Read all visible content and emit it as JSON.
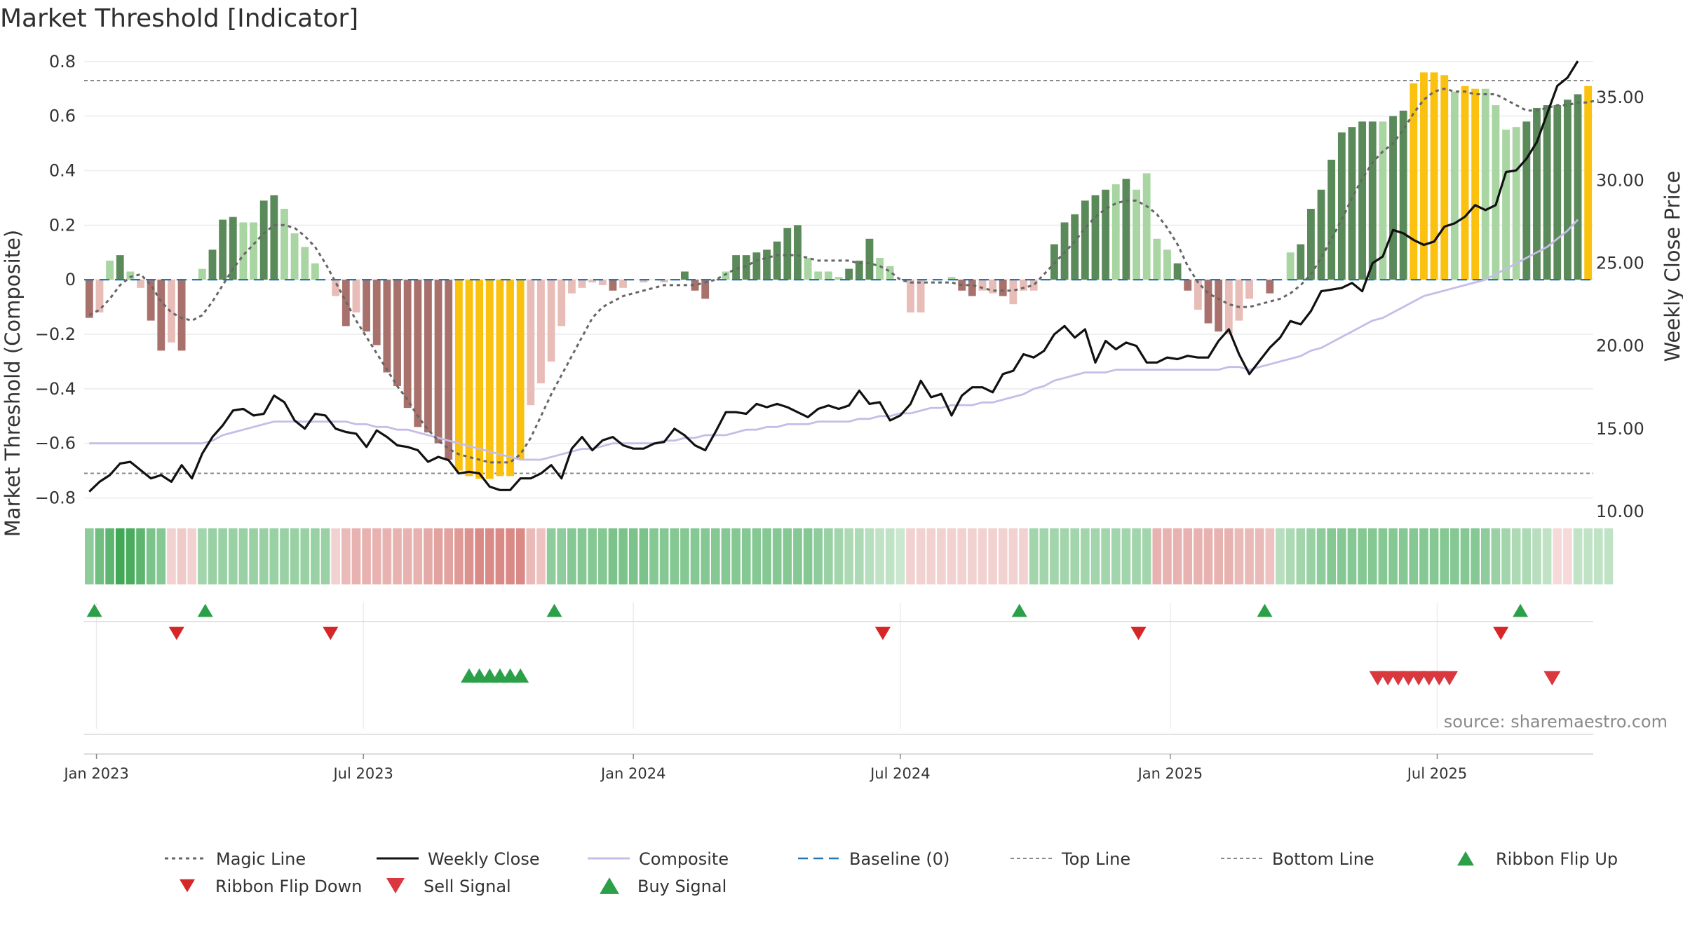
{
  "title": "Market Threshold [Indicator]",
  "source": "source: sharemaestro.com",
  "colors": {
    "strong_up": "#5b8a5a",
    "weak_up": "#a8d5a2",
    "strong_down": "#a8716c",
    "weak_down": "#e8bdb8",
    "extreme": "#fbc10f",
    "price": "#111111",
    "composite": "#c5bde8",
    "magic": "#666666",
    "baseline": "#1f77b4",
    "threshold": "#888888",
    "buy": "#2ca048",
    "sell": "#d9383f",
    "flip_down": "#d62728"
  },
  "chart_data": {
    "type": "bar",
    "title": "Market Threshold [Indicator]",
    "ylabel_left": "Market Threshold (Composite)",
    "ylabel_right": "Weekly Close Price",
    "ylim_left": [
      -0.85,
      0.82
    ],
    "ylim_right": [
      10,
      37.5
    ],
    "yticks_left": [
      0.8,
      0.6,
      0.4,
      0.2,
      0,
      -0.2,
      -0.4,
      -0.6,
      -0.8
    ],
    "yticks_left_labels": [
      "0.8",
      "0.6",
      "0.4",
      "0.2",
      "0",
      "−0.2",
      "−0.4",
      "−0.6",
      "−0.8"
    ],
    "yticks_right": [
      35,
      30,
      25,
      20,
      15,
      10
    ],
    "yticks_right_labels": [
      "35.00",
      "30.00",
      "25.00",
      "20.00",
      "15.00",
      "10.00"
    ],
    "xticks": [
      {
        "week": 0.7,
        "label": "Jan 2023"
      },
      {
        "week": 26.7,
        "label": "Jul 2023"
      },
      {
        "week": 53,
        "label": "Jan 2024"
      },
      {
        "week": 79,
        "label": "Jul 2024"
      },
      {
        "week": 105.3,
        "label": "Jan 2025"
      },
      {
        "week": 131.3,
        "label": "Jul 2025"
      }
    ],
    "top_line": 0.73,
    "bottom_line": -0.71,
    "baseline": 0,
    "histogram": [
      -0.14,
      -0.12,
      0.07,
      0.09,
      0.03,
      -0.03,
      -0.15,
      -0.26,
      -0.23,
      -0.26,
      0.0,
      0.04,
      0.11,
      0.22,
      0.23,
      0.21,
      0.21,
      0.29,
      0.31,
      0.26,
      0.17,
      0.12,
      0.06,
      0.0,
      -0.06,
      -0.17,
      -0.12,
      -0.19,
      -0.24,
      -0.34,
      -0.39,
      -0.47,
      -0.54,
      -0.56,
      -0.6,
      -0.66,
      -0.7,
      -0.72,
      -0.73,
      -0.73,
      -0.72,
      -0.72,
      -0.66,
      -0.46,
      -0.38,
      -0.3,
      -0.17,
      -0.05,
      -0.03,
      -0.01,
      -0.02,
      -0.04,
      -0.03,
      0.0,
      -0.01,
      0.0,
      -0.01,
      0.0,
      0.03,
      -0.04,
      -0.07,
      0.0,
      0.03,
      0.09,
      0.09,
      0.1,
      0.11,
      0.14,
      0.19,
      0.2,
      0.08,
      0.03,
      0.03,
      0.01,
      0.04,
      0.07,
      0.15,
      0.08,
      0.05,
      0.0,
      -0.12,
      -0.12,
      0.0,
      0.0,
      0.01,
      -0.04,
      -0.06,
      -0.04,
      -0.05,
      -0.06,
      -0.09,
      -0.04,
      -0.04,
      0.0,
      0.13,
      0.21,
      0.24,
      0.29,
      0.31,
      0.33,
      0.35,
      0.37,
      0.33,
      0.39,
      0.15,
      0.11,
      0.06,
      -0.04,
      -0.11,
      -0.16,
      -0.19,
      -0.2,
      -0.15,
      -0.07,
      0.0,
      -0.05,
      0.0,
      0.1,
      0.13,
      0.26,
      0.33,
      0.44,
      0.54,
      0.56,
      0.58,
      0.58,
      0.58,
      0.6,
      0.62,
      0.72,
      0.76,
      0.76,
      0.75,
      0.69,
      0.71,
      0.7,
      0.7,
      0.64,
      0.55,
      0.56,
      0.58,
      0.63,
      0.64,
      0.64,
      0.66,
      0.68,
      0.71
    ],
    "histogram_style": "S,W,W,S,W,W,S,S,W,S,W,W,S,S,S,W,W,S,S,W,W,W,W,W,W,S,W,S,S,S,S,S,S,S,S,S,Y,Y,Y,Y,Y,Y,Y,W,W,W,W,W,W,W,W,S,W,W,W,W,W,W,S,S,S,W,W,S,S,S,S,S,S,S,W,W,W,W,S,S,S,W,W,W,W,W,W,W,W,S,S,W,W,S,W,W,W,S,S,S,S,S,S,S,W,S,W,W,W,W,S,S,W,S,S,W,W,W,W,S,W,W,S,S,S,S,S,S,S,S,W,S,S,Y,Y,Y,Y,W,Y,Y,W,W,W,W,S,S,S,S,S,S,Y",
    "magic_line": [
      -0.13,
      -0.11,
      -0.07,
      -0.02,
      0.01,
      0.02,
      -0.02,
      -0.08,
      -0.12,
      -0.14,
      -0.15,
      -0.13,
      -0.08,
      -0.02,
      0.04,
      0.09,
      0.13,
      0.17,
      0.2,
      0.2,
      0.19,
      0.16,
      0.12,
      0.06,
      -0.01,
      -0.08,
      -0.15,
      -0.21,
      -0.27,
      -0.33,
      -0.39,
      -0.44,
      -0.5,
      -0.55,
      -0.59,
      -0.62,
      -0.64,
      -0.65,
      -0.66,
      -0.67,
      -0.67,
      -0.67,
      -0.64,
      -0.58,
      -0.5,
      -0.42,
      -0.35,
      -0.28,
      -0.21,
      -0.14,
      -0.1,
      -0.08,
      -0.06,
      -0.05,
      -0.04,
      -0.03,
      -0.02,
      -0.02,
      -0.02,
      -0.02,
      -0.01,
      0.0,
      0.02,
      0.04,
      0.05,
      0.07,
      0.08,
      0.09,
      0.09,
      0.09,
      0.08,
      0.07,
      0.07,
      0.07,
      0.07,
      0.06,
      0.06,
      0.05,
      0.03,
      0.0,
      -0.01,
      -0.01,
      -0.01,
      -0.01,
      -0.01,
      -0.02,
      -0.02,
      -0.03,
      -0.04,
      -0.04,
      -0.04,
      -0.03,
      -0.02,
      0.02,
      0.06,
      0.1,
      0.14,
      0.19,
      0.23,
      0.26,
      0.28,
      0.29,
      0.29,
      0.27,
      0.24,
      0.19,
      0.13,
      0.05,
      -0.01,
      -0.05,
      -0.07,
      -0.09,
      -0.1,
      -0.1,
      -0.09,
      -0.08,
      -0.07,
      -0.05,
      -0.02,
      0.02,
      0.08,
      0.15,
      0.22,
      0.3,
      0.37,
      0.43,
      0.47,
      0.5,
      0.55,
      0.61,
      0.66,
      0.69,
      0.7,
      0.69,
      0.69,
      0.68,
      0.68,
      0.68,
      0.66,
      0.64,
      0.62,
      0.62,
      0.63,
      0.64,
      0.64,
      0.65,
      0.65,
      0.66
    ],
    "weekly_close": [
      11.2,
      11.8,
      12.2,
      12.9,
      13.0,
      12.5,
      12.0,
      12.2,
      11.8,
      12.8,
      12.0,
      13.5,
      14.5,
      15.2,
      16.1,
      16.2,
      15.8,
      15.9,
      17.0,
      16.6,
      15.5,
      15.0,
      15.9,
      15.8,
      15.0,
      14.8,
      14.7,
      13.9,
      14.9,
      14.5,
      14.0,
      13.9,
      13.7,
      13.0,
      13.3,
      13.1,
      12.3,
      12.4,
      12.3,
      11.5,
      11.3,
      11.3,
      12.0,
      12.0,
      12.3,
      12.8,
      12.0,
      13.8,
      14.5,
      13.7,
      14.3,
      14.5,
      14.0,
      13.8,
      13.8,
      14.1,
      14.2,
      15.0,
      14.6,
      14.0,
      13.7,
      14.8,
      16.0,
      16.0,
      15.9,
      16.5,
      16.3,
      16.5,
      16.3,
      16.0,
      15.7,
      16.2,
      16.4,
      16.2,
      16.4,
      17.3,
      16.5,
      16.6,
      15.5,
      15.8,
      16.5,
      17.9,
      16.9,
      17.1,
      15.8,
      17.0,
      17.5,
      17.5,
      17.2,
      18.3,
      18.5,
      19.5,
      19.3,
      19.7,
      20.7,
      21.2,
      20.5,
      21.0,
      19.0,
      20.3,
      19.8,
      20.2,
      20.0,
      19.0,
      19.0,
      19.3,
      19.2,
      19.4,
      19.3,
      19.3,
      20.3,
      21.0,
      19.5,
      18.3,
      19.1,
      19.9,
      20.5,
      21.5,
      21.3,
      22.1,
      23.3,
      23.4,
      23.5,
      23.8,
      23.3,
      25.0,
      25.4,
      27.0,
      26.8,
      26.4,
      26.1,
      26.3,
      27.2,
      27.4,
      27.8,
      28.5,
      28.2,
      28.5,
      30.5,
      30.6,
      31.3,
      32.3,
      34.0,
      35.7,
      36.2,
      37.2
    ],
    "composite_line": [
      -0.6,
      -0.6,
      -0.6,
      -0.6,
      -0.6,
      -0.6,
      -0.6,
      -0.6,
      -0.6,
      -0.6,
      -0.6,
      -0.6,
      -0.59,
      -0.57,
      -0.56,
      -0.55,
      -0.54,
      -0.53,
      -0.52,
      -0.52,
      -0.52,
      -0.52,
      -0.52,
      -0.52,
      -0.52,
      -0.52,
      -0.53,
      -0.53,
      -0.54,
      -0.54,
      -0.55,
      -0.55,
      -0.56,
      -0.57,
      -0.58,
      -0.59,
      -0.6,
      -0.61,
      -0.62,
      -0.63,
      -0.64,
      -0.65,
      -0.66,
      -0.66,
      -0.66,
      -0.65,
      -0.64,
      -0.63,
      -0.62,
      -0.62,
      -0.61,
      -0.6,
      -0.6,
      -0.6,
      -0.6,
      -0.6,
      -0.59,
      -0.59,
      -0.58,
      -0.58,
      -0.57,
      -0.57,
      -0.57,
      -0.56,
      -0.55,
      -0.55,
      -0.54,
      -0.54,
      -0.53,
      -0.53,
      -0.53,
      -0.52,
      -0.52,
      -0.52,
      -0.52,
      -0.51,
      -0.51,
      -0.5,
      -0.5,
      -0.49,
      -0.49,
      -0.48,
      -0.47,
      -0.47,
      -0.46,
      -0.46,
      -0.46,
      -0.45,
      -0.45,
      -0.44,
      -0.43,
      -0.42,
      -0.4,
      -0.39,
      -0.37,
      -0.36,
      -0.35,
      -0.34,
      -0.34,
      -0.34,
      -0.33,
      -0.33,
      -0.33,
      -0.33,
      -0.33,
      -0.33,
      -0.33,
      -0.33,
      -0.33,
      -0.33,
      -0.33,
      -0.32,
      -0.32,
      -0.33,
      -0.32,
      -0.31,
      -0.3,
      -0.29,
      -0.28,
      -0.26,
      -0.25,
      -0.23,
      -0.21,
      -0.19,
      -0.17,
      -0.15,
      -0.14,
      -0.12,
      -0.1,
      -0.08,
      -0.06,
      -0.05,
      -0.04,
      -0.03,
      -0.02,
      -0.01,
      0.0,
      0.02,
      0.04,
      0.06,
      0.08,
      0.1,
      0.12,
      0.15,
      0.18,
      0.22
    ],
    "ribbon": [
      0.45,
      0.6,
      0.7,
      0.85,
      0.8,
      0.7,
      0.55,
      0.5,
      -0.15,
      -0.2,
      -0.15,
      0.35,
      0.4,
      0.4,
      0.4,
      0.4,
      0.4,
      0.4,
      0.4,
      0.4,
      0.4,
      0.4,
      0.4,
      0.4,
      -0.15,
      -0.3,
      -0.35,
      -0.35,
      -0.35,
      -0.35,
      -0.35,
      -0.35,
      -0.35,
      -0.4,
      -0.45,
      -0.45,
      -0.5,
      -0.55,
      -0.6,
      -0.6,
      -0.6,
      -0.6,
      -0.6,
      -0.3,
      -0.25,
      0.45,
      0.45,
      0.5,
      0.5,
      0.5,
      0.5,
      0.55,
      0.55,
      0.55,
      0.55,
      0.5,
      0.5,
      0.5,
      0.5,
      0.5,
      0.5,
      0.5,
      0.5,
      0.5,
      0.5,
      0.5,
      0.5,
      0.5,
      0.5,
      0.5,
      0.5,
      0.45,
      0.4,
      0.35,
      0.3,
      0.3,
      0.25,
      0.2,
      0.2,
      0.15,
      -0.15,
      -0.15,
      -0.15,
      -0.15,
      -0.15,
      -0.15,
      -0.15,
      -0.15,
      -0.15,
      -0.15,
      -0.15,
      -0.15,
      0.35,
      0.35,
      0.35,
      0.35,
      0.35,
      0.35,
      0.35,
      0.35,
      0.35,
      0.35,
      0.35,
      0.35,
      -0.35,
      -0.35,
      -0.35,
      -0.35,
      -0.35,
      -0.35,
      -0.35,
      -0.35,
      -0.3,
      -0.3,
      -0.3,
      -0.25,
      0.25,
      0.3,
      0.35,
      0.4,
      0.45,
      0.5,
      0.5,
      0.5,
      0.5,
      0.5,
      0.5,
      0.5,
      0.5,
      0.5,
      0.5,
      0.5,
      0.5,
      0.5,
      0.5,
      0.5,
      0.45,
      0.4,
      0.35,
      0.3,
      0.3,
      0.25,
      0.2,
      -0.1,
      -0.1,
      0.2,
      0.2,
      0.2,
      0.2
    ],
    "ribbon_flip_up_weeks": [
      0.5,
      11.3,
      45.3,
      90.6,
      114.5,
      139.4
    ],
    "ribbon_flip_down_weeks": [
      8.5,
      23.5,
      77.3,
      102.2,
      137.5
    ],
    "buy_signal_weeks": [
      37,
      38,
      39,
      40,
      41,
      42
    ],
    "sell_signal_weeks": [
      125.5,
      126.5,
      127.5,
      128.5,
      129.5,
      130.5,
      131.5,
      132.5,
      142.5
    ],
    "legend": [
      {
        "key": "magic",
        "label": "Magic Line"
      },
      {
        "key": "price",
        "label": "Weekly Close"
      },
      {
        "key": "composite",
        "label": "Composite"
      },
      {
        "key": "baseline",
        "label": "Baseline (0)"
      },
      {
        "key": "top",
        "label": "Top Line"
      },
      {
        "key": "bottom",
        "label": "Bottom Line"
      },
      {
        "key": "flip_up",
        "label": "Ribbon Flip Up"
      },
      {
        "key": "flip_down",
        "label": "Ribbon Flip Down"
      },
      {
        "key": "sell",
        "label": "Sell Signal"
      },
      {
        "key": "buy",
        "label": "Buy Signal"
      }
    ]
  }
}
